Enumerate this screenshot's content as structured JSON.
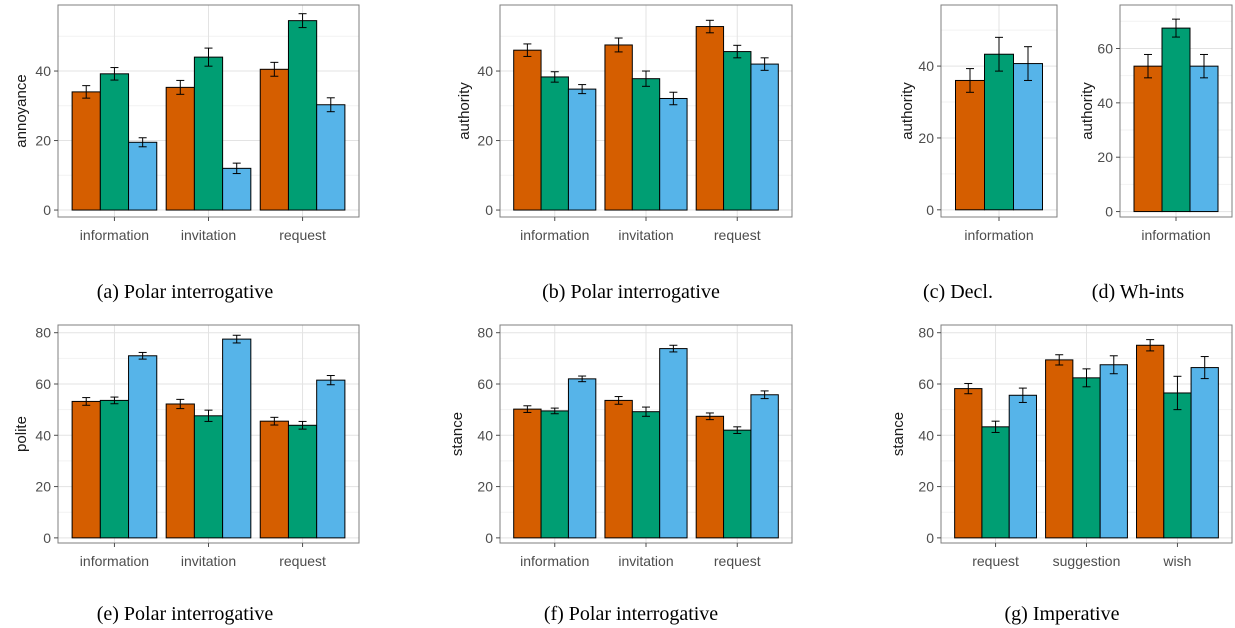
{
  "colors": {
    "series": [
      "#D55E00",
      "#009E73",
      "#56B4E9"
    ],
    "grid_major": "#e3e3e3",
    "grid_minor": "#f2f2f2",
    "frame": "#7f7f7f"
  },
  "chart_data": [
    {
      "type": "bar",
      "caption": "(a) Polar interrogative",
      "ylabel": "annoyance",
      "ylim": [
        -2,
        59
      ],
      "yticks": [
        0,
        20,
        40
      ],
      "categories": [
        "information",
        "invitation",
        "request"
      ],
      "series": [
        {
          "values": [
            34.0,
            35.3,
            40.5
          ],
          "errors": [
            1.8,
            2.0,
            2.0
          ]
        },
        {
          "values": [
            39.2,
            44.0,
            54.5
          ],
          "errors": [
            1.8,
            2.6,
            2.0
          ]
        },
        {
          "values": [
            19.5,
            12.0,
            30.3
          ],
          "errors": [
            1.3,
            1.5,
            2.0
          ]
        }
      ],
      "grid": true
    },
    {
      "type": "bar",
      "caption": "(b) Polar interrogative",
      "ylabel": "authority",
      "ylim": [
        -2,
        59
      ],
      "yticks": [
        0,
        20,
        40
      ],
      "categories": [
        "information",
        "invitation",
        "request"
      ],
      "series": [
        {
          "values": [
            46.0,
            47.5,
            52.8
          ],
          "errors": [
            1.8,
            2.0,
            1.8
          ]
        },
        {
          "values": [
            38.3,
            37.8,
            45.6
          ],
          "errors": [
            1.5,
            2.2,
            1.8
          ]
        },
        {
          "values": [
            34.8,
            32.1,
            42.0
          ],
          "errors": [
            1.3,
            1.8,
            1.8
          ]
        }
      ],
      "grid": true
    },
    {
      "type": "bar",
      "caption": "(c) Decl.",
      "ylabel": "authority",
      "ylim": [
        -2,
        57
      ],
      "yticks": [
        0,
        20,
        40
      ],
      "categories": [
        "information"
      ],
      "series": [
        {
          "values": [
            36.0
          ],
          "errors": [
            3.3
          ]
        },
        {
          "values": [
            43.3
          ],
          "errors": [
            4.7
          ]
        },
        {
          "values": [
            40.7
          ],
          "errors": [
            4.7
          ]
        }
      ],
      "grid": true
    },
    {
      "type": "bar",
      "caption": "(d) Wh-ints",
      "ylabel": "authority",
      "ylim": [
        -2,
        76
      ],
      "yticks": [
        0,
        20,
        40,
        60
      ],
      "categories": [
        "information"
      ],
      "series": [
        {
          "values": [
            53.5
          ],
          "errors": [
            4.3
          ]
        },
        {
          "values": [
            67.5
          ],
          "errors": [
            3.3
          ]
        },
        {
          "values": [
            53.5
          ],
          "errors": [
            4.3
          ]
        }
      ],
      "grid": true
    },
    {
      "type": "bar",
      "caption": "(e) Polar interrogative",
      "ylabel": "polite",
      "ylim": [
        -2,
        83
      ],
      "yticks": [
        0,
        20,
        40,
        60,
        80
      ],
      "categories": [
        "information",
        "invitation",
        "request"
      ],
      "series": [
        {
          "values": [
            53.2,
            52.2,
            45.5
          ],
          "errors": [
            1.5,
            1.8,
            1.5
          ]
        },
        {
          "values": [
            53.6,
            47.6,
            43.9
          ],
          "errors": [
            1.3,
            2.2,
            1.5
          ]
        },
        {
          "values": [
            71.0,
            77.5,
            61.5
          ],
          "errors": [
            1.3,
            1.5,
            1.8
          ]
        }
      ],
      "grid": true
    },
    {
      "type": "bar",
      "caption": "(f) Polar interrogative",
      "ylabel": "stance",
      "ylim": [
        -2,
        83
      ],
      "yticks": [
        0,
        20,
        40,
        60,
        80
      ],
      "categories": [
        "information",
        "invitation",
        "request"
      ],
      "series": [
        {
          "values": [
            50.2,
            53.6,
            47.4
          ],
          "errors": [
            1.3,
            1.5,
            1.3
          ]
        },
        {
          "values": [
            49.5,
            49.2,
            42.0
          ],
          "errors": [
            1.1,
            1.8,
            1.3
          ]
        },
        {
          "values": [
            62.0,
            73.8,
            55.8
          ],
          "errors": [
            1.1,
            1.3,
            1.5
          ]
        }
      ],
      "grid": true
    },
    {
      "type": "bar",
      "caption": "(g) Imperative",
      "ylabel": "stance",
      "ylim": [
        -2,
        83
      ],
      "yticks": [
        0,
        20,
        40,
        60,
        80
      ],
      "categories": [
        "request",
        "suggestion",
        "wish"
      ],
      "series": [
        {
          "values": [
            58.2,
            69.4,
            75.1
          ],
          "errors": [
            2.0,
            2.0,
            2.2
          ]
        },
        {
          "values": [
            43.3,
            62.4,
            56.5
          ],
          "errors": [
            2.2,
            3.5,
            6.5
          ]
        },
        {
          "values": [
            55.6,
            67.5,
            66.4
          ],
          "errors": [
            2.8,
            3.5,
            4.3
          ]
        }
      ],
      "grid": true
    }
  ]
}
